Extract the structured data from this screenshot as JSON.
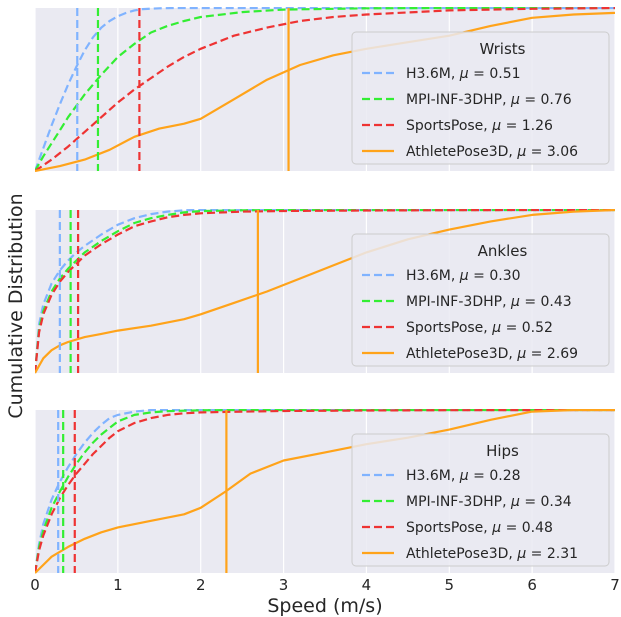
{
  "figure": {
    "ylabel": "Cumulative Distribution",
    "xlabel": "Speed (m/s)",
    "xticks": [
      "0",
      "1",
      "2",
      "3",
      "4",
      "5",
      "6",
      "7"
    ]
  },
  "chart_data": [
    {
      "type": "line",
      "title": "",
      "xlabel": "Speed (m/s)",
      "ylabel": "Cumulative Distribution",
      "xlim": [
        0,
        7
      ],
      "ylim": [
        0,
        1
      ],
      "grid": true,
      "legend": {
        "title": "Wrists",
        "placement": "right"
      },
      "series": [
        {
          "name": "H3.6M, μ = 0.51",
          "color": "#80b3ff",
          "dash": true,
          "mean": 0.51,
          "x": [
            0,
            0.1,
            0.2,
            0.3,
            0.4,
            0.5,
            0.6,
            0.7,
            0.8,
            0.9,
            1.0,
            1.1,
            1.2,
            1.3,
            1.5,
            1.7,
            2.0,
            2.5,
            3.0,
            7.0
          ],
          "y": [
            0,
            0.14,
            0.28,
            0.41,
            0.53,
            0.64,
            0.74,
            0.82,
            0.88,
            0.92,
            0.95,
            0.97,
            0.985,
            0.993,
            0.998,
            1.0,
            1.0,
            1.0,
            1.0,
            1.0
          ]
        },
        {
          "name": "MPI-INF-3DHP, μ = 0.76",
          "color": "#33ee33",
          "dash": true,
          "mean": 0.76,
          "x": [
            0,
            0.1,
            0.2,
            0.3,
            0.4,
            0.5,
            0.6,
            0.8,
            1.0,
            1.2,
            1.4,
            1.6,
            1.8,
            2.0,
            2.5,
            3.0,
            4.0,
            5.0,
            7.0
          ],
          "y": [
            0,
            0.09,
            0.17,
            0.25,
            0.33,
            0.4,
            0.47,
            0.59,
            0.7,
            0.78,
            0.85,
            0.89,
            0.92,
            0.945,
            0.975,
            0.99,
            0.998,
            1.0,
            1.0
          ]
        },
        {
          "name": "SportsPose, μ = 1.26",
          "color": "#ee3333",
          "dash": true,
          "mean": 1.26,
          "x": [
            0,
            0.2,
            0.4,
            0.6,
            0.8,
            1.0,
            1.2,
            1.4,
            1.6,
            1.8,
            2.0,
            2.4,
            2.8,
            3.2,
            3.6,
            4.0,
            5.0,
            6.0,
            7.0
          ],
          "y": [
            0,
            0.07,
            0.15,
            0.24,
            0.33,
            0.42,
            0.5,
            0.57,
            0.64,
            0.7,
            0.75,
            0.83,
            0.88,
            0.92,
            0.945,
            0.96,
            0.985,
            0.995,
            1.0
          ]
        },
        {
          "name": "AthletePose3D, μ = 3.06",
          "color": "#ffa31a",
          "dash": false,
          "mean": 3.06,
          "x": [
            0,
            0.3,
            0.6,
            0.9,
            1.2,
            1.5,
            1.8,
            2.0,
            2.4,
            2.8,
            3.2,
            3.6,
            4.0,
            4.5,
            5.0,
            5.5,
            6.0,
            6.5,
            7.0
          ],
          "y": [
            0,
            0.03,
            0.07,
            0.13,
            0.21,
            0.26,
            0.29,
            0.32,
            0.44,
            0.56,
            0.65,
            0.71,
            0.75,
            0.79,
            0.83,
            0.89,
            0.94,
            0.96,
            0.97
          ]
        }
      ]
    },
    {
      "type": "line",
      "title": "",
      "xlabel": "Speed (m/s)",
      "ylabel": "Cumulative Distribution",
      "xlim": [
        0,
        7
      ],
      "ylim": [
        0,
        1
      ],
      "grid": true,
      "legend": {
        "title": "Ankles",
        "placement": "right"
      },
      "series": [
        {
          "name": "H3.6M, μ = 0.30",
          "color": "#80b3ff",
          "dash": true,
          "mean": 0.3,
          "x": [
            0,
            0.05,
            0.1,
            0.2,
            0.3,
            0.4,
            0.5,
            0.6,
            0.8,
            1.0,
            1.2,
            1.4,
            1.6,
            1.8,
            2.0,
            2.5,
            7.0
          ],
          "y": [
            0,
            0.3,
            0.42,
            0.55,
            0.63,
            0.69,
            0.74,
            0.78,
            0.85,
            0.91,
            0.95,
            0.975,
            0.99,
            0.998,
            1.0,
            1.0,
            1.0
          ]
        },
        {
          "name": "MPI-INF-3DHP, μ = 0.43",
          "color": "#33ee33",
          "dash": true,
          "mean": 0.43,
          "x": [
            0,
            0.05,
            0.1,
            0.2,
            0.3,
            0.4,
            0.5,
            0.6,
            0.8,
            1.0,
            1.2,
            1.4,
            1.6,
            1.8,
            2.0,
            2.5,
            3.0,
            4.0,
            7.0
          ],
          "y": [
            0,
            0.27,
            0.38,
            0.5,
            0.58,
            0.64,
            0.69,
            0.74,
            0.81,
            0.87,
            0.92,
            0.95,
            0.97,
            0.985,
            0.993,
            0.998,
            1.0,
            1.0,
            1.0
          ]
        },
        {
          "name": "SportsPose, μ = 0.52",
          "color": "#ee3333",
          "dash": true,
          "mean": 0.52,
          "x": [
            0,
            0.05,
            0.1,
            0.2,
            0.3,
            0.4,
            0.5,
            0.6,
            0.8,
            1.0,
            1.2,
            1.4,
            1.6,
            1.8,
            2.0,
            2.5,
            3.0,
            4.0,
            5.0,
            6.0,
            7.0
          ],
          "y": [
            0,
            0.25,
            0.36,
            0.48,
            0.56,
            0.62,
            0.67,
            0.72,
            0.79,
            0.85,
            0.9,
            0.93,
            0.955,
            0.97,
            0.98,
            0.99,
            0.994,
            0.997,
            0.999,
            1.0,
            1.0
          ]
        },
        {
          "name": "AthletePose3D, μ = 2.69",
          "color": "#ffa31a",
          "dash": false,
          "mean": 2.69,
          "x": [
            0,
            0.1,
            0.2,
            0.3,
            0.4,
            0.6,
            0.8,
            1.0,
            1.4,
            1.8,
            2.0,
            2.4,
            2.8,
            3.2,
            3.6,
            4.0,
            4.5,
            5.0,
            5.5,
            6.0,
            6.5,
            7.0
          ],
          "y": [
            0,
            0.09,
            0.14,
            0.17,
            0.19,
            0.22,
            0.24,
            0.26,
            0.29,
            0.33,
            0.36,
            0.43,
            0.5,
            0.58,
            0.66,
            0.74,
            0.82,
            0.88,
            0.93,
            0.97,
            0.99,
            1.0
          ]
        }
      ]
    },
    {
      "type": "line",
      "title": "",
      "xlabel": "Speed (m/s)",
      "ylabel": "Cumulative Distribution",
      "xlim": [
        0,
        7
      ],
      "ylim": [
        0,
        1
      ],
      "grid": true,
      "legend": {
        "title": "Hips",
        "placement": "right"
      },
      "series": [
        {
          "name": "H3.6M, μ = 0.28",
          "color": "#80b3ff",
          "dash": true,
          "mean": 0.28,
          "x": [
            0,
            0.05,
            0.1,
            0.2,
            0.3,
            0.4,
            0.5,
            0.6,
            0.7,
            0.8,
            0.9,
            1.0,
            1.2,
            1.4,
            1.6,
            2.0,
            7.0
          ],
          "y": [
            0,
            0.18,
            0.3,
            0.45,
            0.56,
            0.65,
            0.73,
            0.8,
            0.86,
            0.91,
            0.95,
            0.97,
            0.99,
            1.0,
            1.0,
            1.0,
            1.0
          ]
        },
        {
          "name": "MPI-INF-3DHP, μ = 0.34",
          "color": "#33ee33",
          "dash": true,
          "mean": 0.34,
          "x": [
            0,
            0.05,
            0.1,
            0.2,
            0.3,
            0.4,
            0.5,
            0.6,
            0.7,
            0.8,
            0.9,
            1.0,
            1.2,
            1.4,
            1.6,
            2.0,
            2.5,
            7.0
          ],
          "y": [
            0,
            0.16,
            0.26,
            0.4,
            0.5,
            0.59,
            0.67,
            0.74,
            0.8,
            0.85,
            0.89,
            0.93,
            0.97,
            0.985,
            0.993,
            0.998,
            1.0,
            1.0
          ]
        },
        {
          "name": "SportsPose, μ = 0.48",
          "color": "#ee3333",
          "dash": true,
          "mean": 0.48,
          "x": [
            0,
            0.05,
            0.1,
            0.2,
            0.3,
            0.4,
            0.5,
            0.6,
            0.7,
            0.8,
            0.9,
            1.0,
            1.2,
            1.4,
            1.6,
            1.8,
            2.0,
            2.5,
            3.0,
            4.0,
            5.0,
            7.0
          ],
          "y": [
            0,
            0.14,
            0.23,
            0.36,
            0.46,
            0.54,
            0.61,
            0.67,
            0.73,
            0.78,
            0.83,
            0.87,
            0.92,
            0.95,
            0.97,
            0.98,
            0.985,
            0.99,
            0.994,
            0.997,
            0.999,
            1.0
          ]
        },
        {
          "name": "AthletePose3D, μ = 2.31",
          "color": "#ffa31a",
          "dash": false,
          "mean": 2.31,
          "x": [
            0,
            0.1,
            0.2,
            0.4,
            0.6,
            0.8,
            1.0,
            1.4,
            1.8,
            2.0,
            2.3,
            2.6,
            3.0,
            3.5,
            4.0,
            4.5,
            5.0,
            5.5,
            6.0,
            6.5,
            7.0
          ],
          "y": [
            0,
            0.05,
            0.1,
            0.16,
            0.21,
            0.25,
            0.28,
            0.32,
            0.36,
            0.4,
            0.5,
            0.61,
            0.69,
            0.74,
            0.79,
            0.83,
            0.88,
            0.94,
            0.99,
            1.0,
            1.0
          ]
        }
      ]
    }
  ]
}
